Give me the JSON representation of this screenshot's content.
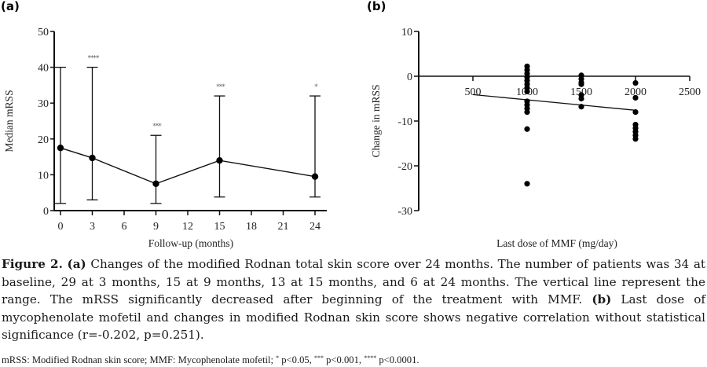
{
  "chart_data": [
    {
      "panel": "(a)",
      "type": "line",
      "title": "",
      "xlabel": "Follow-up (months)",
      "ylabel": "Median mRSS",
      "xlim": [
        0,
        25
      ],
      "ylim": [
        0,
        50
      ],
      "xticks": [
        0,
        3,
        6,
        9,
        12,
        15,
        18,
        21,
        24
      ],
      "yticks": [
        0,
        10,
        20,
        30,
        40,
        50
      ],
      "grid": false,
      "series": [
        {
          "name": "Median mRSS",
          "x": [
            0,
            3,
            9,
            15,
            24
          ],
          "values": [
            17.5,
            14.7,
            7.5,
            14,
            9.5
          ],
          "range_min": [
            2,
            3,
            2,
            3.8,
            3.8
          ],
          "range_max": [
            40,
            40,
            21,
            32,
            32
          ],
          "significance": [
            "",
            "****",
            "***",
            "***",
            "*"
          ]
        }
      ]
    },
    {
      "panel": "(b)",
      "type": "scatter",
      "title": "",
      "xlabel": "Last dose of MMF (mg/day)",
      "ylabel": "Change in mRSS",
      "xlim": [
        0,
        2500
      ],
      "ylim": [
        -30,
        10
      ],
      "xticks": [
        500,
        1000,
        1500,
        2000,
        2500
      ],
      "yticks": [
        10,
        0,
        -10,
        -20,
        -30
      ],
      "grid": false,
      "points": [
        {
          "x": 1000,
          "y": 2.2
        },
        {
          "x": 1000,
          "y": 1.4
        },
        {
          "x": 1000,
          "y": 0.6
        },
        {
          "x": 1000,
          "y": -0.2
        },
        {
          "x": 1000,
          "y": -1.0
        },
        {
          "x": 1000,
          "y": -1.8
        },
        {
          "x": 1000,
          "y": -2.6
        },
        {
          "x": 1000,
          "y": -3.4
        },
        {
          "x": 1000,
          "y": -5.6
        },
        {
          "x": 1000,
          "y": -6.4
        },
        {
          "x": 1000,
          "y": -7.2
        },
        {
          "x": 1000,
          "y": -8.0
        },
        {
          "x": 1000,
          "y": -11.8
        },
        {
          "x": 1000,
          "y": -24.0
        },
        {
          "x": 1500,
          "y": 0.2
        },
        {
          "x": 1500,
          "y": -0.6
        },
        {
          "x": 1500,
          "y": -1.4
        },
        {
          "x": 1500,
          "y": -1.8
        },
        {
          "x": 1500,
          "y": -4.2
        },
        {
          "x": 1500,
          "y": -5.0
        },
        {
          "x": 1500,
          "y": -6.8
        },
        {
          "x": 2000,
          "y": -1.5
        },
        {
          "x": 2000,
          "y": -4.8
        },
        {
          "x": 2000,
          "y": -8.0
        },
        {
          "x": 2000,
          "y": -10.8
        },
        {
          "x": 2000,
          "y": -11.6
        },
        {
          "x": 2000,
          "y": -12.4
        },
        {
          "x": 2000,
          "y": -13.2
        },
        {
          "x": 2000,
          "y": -14.0
        }
      ],
      "regression": {
        "x": [
          500,
          2000
        ],
        "y": [
          -4.1,
          -7.6
        ]
      },
      "annotation": "r=-0.202, p=0.251"
    }
  ],
  "caption": {
    "figure_label": "Figure 2.",
    "a_label": "(a)",
    "a_text": " Changes of the modified Rodnan total skin score over 24 months. The number of patients was 34 at baseline, 29 at 3 months, 15 at 9 months, 13 at 15 months, and 6 at 24 months. The vertical line represent the range. The mRSS significantly decreased after beginning of the treatment with MMF. ",
    "b_label": "(b)",
    "b_text": " Last dose of mycophenolate mofetil and changes in modified Rodnan skin score shows negative correlation without statistical significance (r=-0.202, p=0.251)."
  },
  "footnote": {
    "text1": "mRSS: Modified Rodnan skin score; MMF: Mycophenolate mofetil; ",
    "sig1": "*",
    "text2": " p<0.05, ",
    "sig2": "***",
    "text3": " p<0.001, ",
    "sig3": "****",
    "text4": " p<0.0001."
  }
}
